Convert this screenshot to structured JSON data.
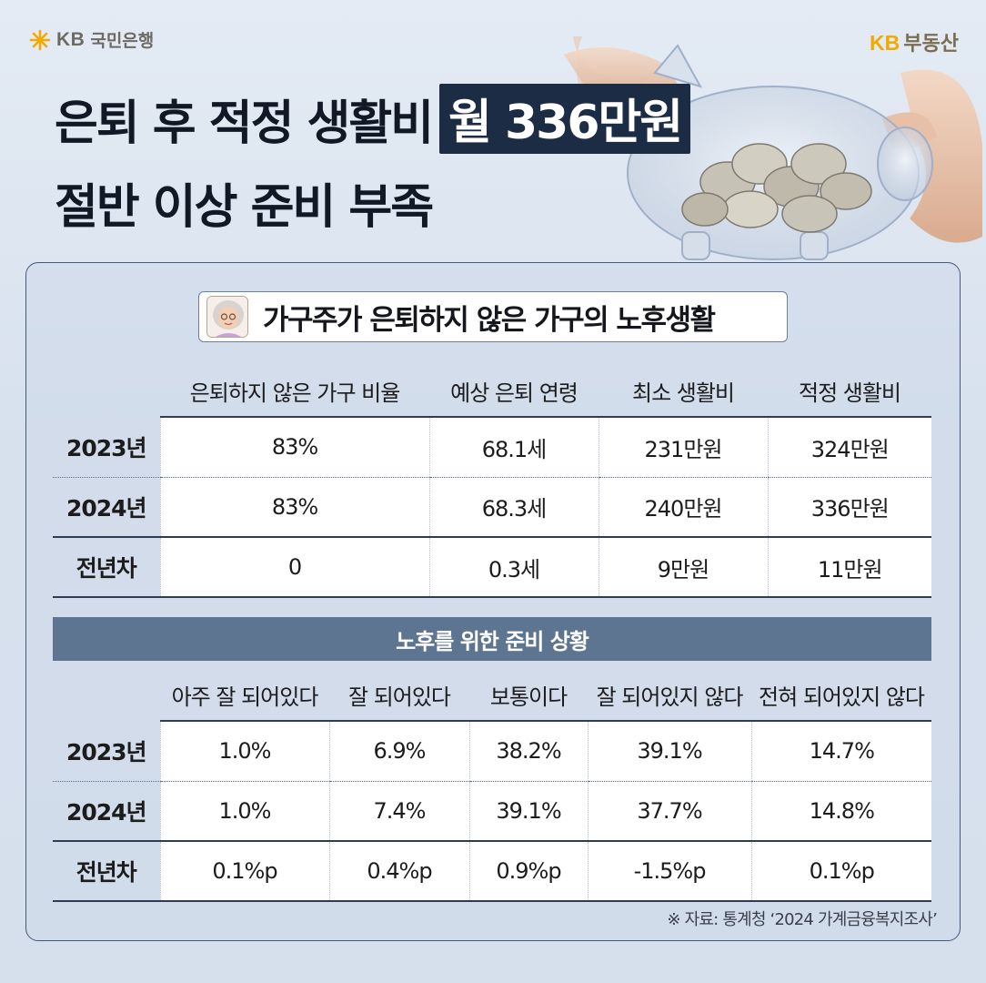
{
  "brand": {
    "left_kb": "KB",
    "left_bank": "국민은행",
    "right_kb": "KB",
    "right_name": "부동산",
    "accent": "#f2a900"
  },
  "headline": {
    "line1": "은퇴 후 적정 생활비",
    "highlight": "월 336만원",
    "line2": "절반 이상 준비 부족"
  },
  "section1": {
    "title": "가구주가 은퇴하지 않은 가구의 노후생활",
    "columns": [
      "은퇴하지 않은 가구 비율",
      "예상 은퇴 연령",
      "최소 생활비",
      "적정 생활비"
    ],
    "rows": [
      {
        "label": "2023년",
        "cells": [
          "83%",
          "68.1세",
          "231만원",
          "324만원"
        ]
      },
      {
        "label": "2024년",
        "cells": [
          "83%",
          "68.3세",
          "240만원",
          "336만원"
        ]
      },
      {
        "label": "전년차",
        "cells": [
          "0",
          "0.3세",
          "9만원",
          "11만원"
        ]
      }
    ]
  },
  "section2": {
    "title": "노후를 위한 준비 상황",
    "columns": [
      "아주 잘 되어있다",
      "잘 되어있다",
      "보통이다",
      "잘 되어있지 않다",
      "전혀 되어있지 않다"
    ],
    "rows": [
      {
        "label": "2023년",
        "cells": [
          "1.0%",
          "6.9%",
          "38.2%",
          "39.1%",
          "14.7%"
        ]
      },
      {
        "label": "2024년",
        "cells": [
          "1.0%",
          "7.4%",
          "39.1%",
          "37.7%",
          "14.8%"
        ]
      },
      {
        "label": "전년차",
        "cells": [
          "0.1%p",
          "0.4%p",
          "0.9%p",
          "-1.5%p",
          "0.1%p"
        ]
      }
    ]
  },
  "source": "※ 자료: 통계청 ‘2024 가계금융복지조사’",
  "colors": {
    "headline_bg": "#1d2c45",
    "bar_bg": "#5e7592",
    "page_bg": "#dbe4ef"
  }
}
